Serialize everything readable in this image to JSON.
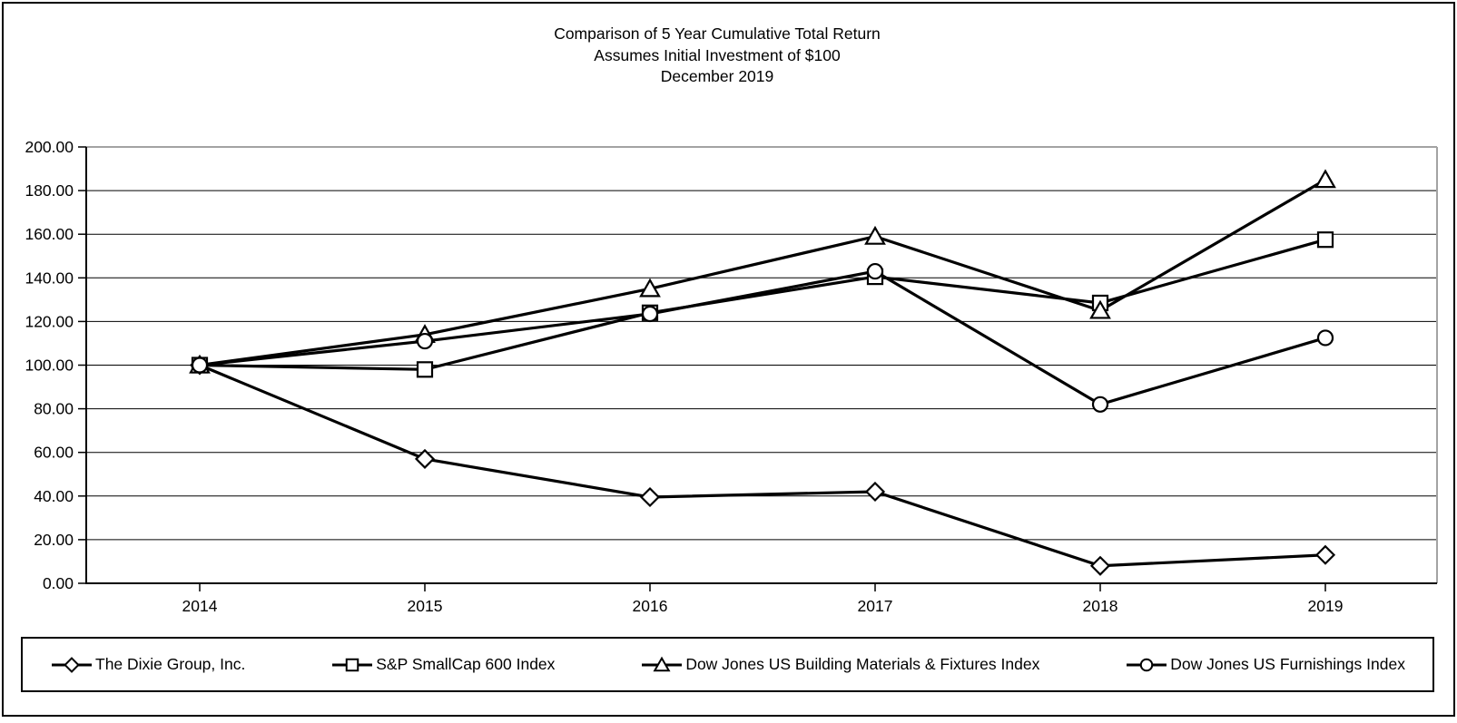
{
  "title": {
    "line1": "Comparison of 5 Year Cumulative Total Return",
    "line2": "Assumes Initial Investment of $100",
    "line3": "December 2019"
  },
  "chart_data": {
    "type": "line",
    "x": [
      2014,
      2015,
      2016,
      2017,
      2018,
      2019
    ],
    "xtick_labels": [
      "2014",
      "2015",
      "2016",
      "2017",
      "2018",
      "2019"
    ],
    "series": [
      {
        "name": "The Dixie Group, Inc.",
        "marker": "diamond",
        "values": [
          100,
          57,
          39.5,
          42,
          8,
          13
        ]
      },
      {
        "name": "S&P SmallCap 600 Index",
        "marker": "square",
        "values": [
          100,
          98,
          124,
          140.5,
          128.5,
          157.5
        ]
      },
      {
        "name": "Dow Jones US Building Materials & Fixtures Index",
        "marker": "triangle",
        "values": [
          100,
          114,
          135,
          159,
          125,
          185
        ]
      },
      {
        "name": "Dow Jones US Furnishings Index",
        "marker": "circle",
        "values": [
          100,
          111,
          123.5,
          143,
          82,
          112.5
        ]
      }
    ],
    "ylim": [
      0,
      200
    ],
    "ytick_step": 20,
    "ytick_labels": [
      "0.00",
      "20.00",
      "40.00",
      "60.00",
      "80.00",
      "100.00",
      "120.00",
      "140.00",
      "160.00",
      "180.00",
      "200.00"
    ],
    "grid": "horizontal",
    "legend_position": "bottom",
    "line_color": "#000000",
    "marker_fill": "#ffffff",
    "frame_shadow_color": "#a3a3a3",
    "text_color": "#000000"
  }
}
